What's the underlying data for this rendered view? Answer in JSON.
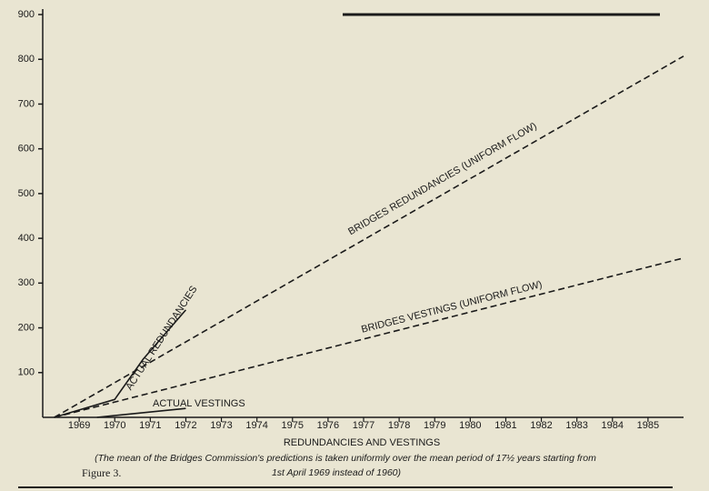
{
  "chart_data": {
    "type": "line",
    "x_label": "REDUNDANCIES AND VESTINGS",
    "xlim": [
      1968,
      1986
    ],
    "xticks": [
      1969,
      1970,
      1971,
      1972,
      1973,
      1974,
      1975,
      1976,
      1977,
      1978,
      1979,
      1980,
      1981,
      1982,
      1983,
      1984,
      1985
    ],
    "ylim": [
      0,
      900
    ],
    "yticks": [
      100,
      200,
      300,
      400,
      500,
      600,
      700,
      800,
      900
    ],
    "series": [
      {
        "name": "BRIDGES REDUNDANCIES (UNIFORM FLOW)",
        "color": "#1a1a1a",
        "dashed": true,
        "x": [
          1968.3,
          1986
        ],
        "values": [
          0,
          807
        ]
      },
      {
        "name": "BRIDGES VESTINGS (UNIFORM FLOW)",
        "color": "#1a1a1a",
        "dashed": true,
        "x": [
          1968.3,
          1986
        ],
        "values": [
          0,
          356
        ]
      },
      {
        "name": "ACTUAL REDUNDANCIES",
        "color": "#1a1a1a",
        "dashed": false,
        "x": [
          1968.3,
          1970,
          1970.8,
          1972
        ],
        "values": [
          0,
          40,
          130,
          240
        ]
      },
      {
        "name": "ACTUAL VESTINGS",
        "color": "#1a1a1a",
        "dashed": false,
        "x": [
          1969.5,
          1972
        ],
        "values": [
          0,
          20
        ]
      }
    ],
    "note": [
      "(The mean of the Bridges Commission's predictions is taken uniformly over the mean period of 17½ years starting from",
      "1st April 1969 instead of 1960)"
    ],
    "figure_label": "Figure 3."
  }
}
